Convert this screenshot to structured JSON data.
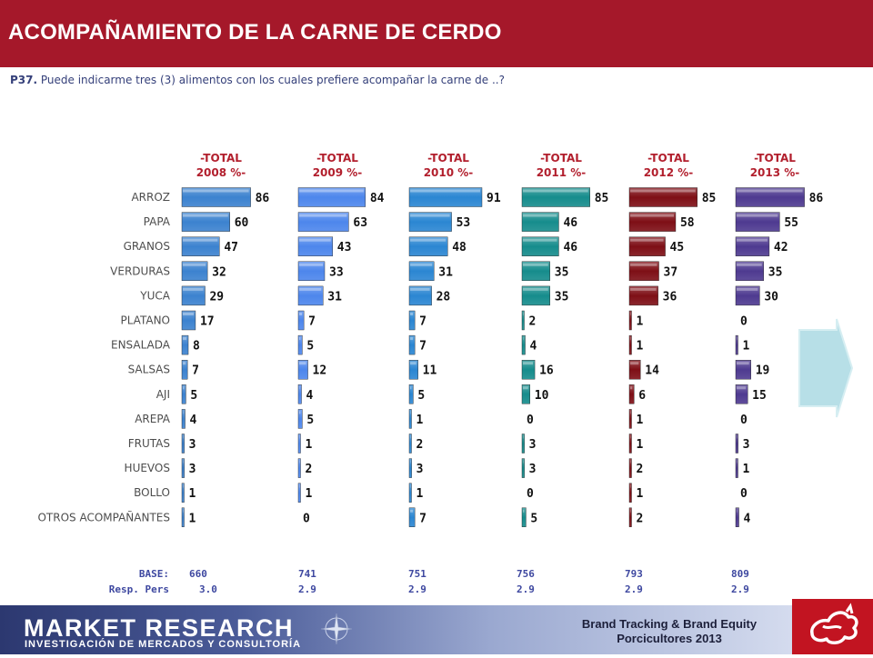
{
  "header": {
    "title": "ACOMPAÑAMIENTO DE LA CARNE DE  CERDO",
    "question_id": "P37.",
    "question_text": " Puede indicarme tres (3) alimentos con los cuales prefiere acompañar la carne de ..?"
  },
  "chart_data": {
    "type": "bar",
    "orientation": "horizontal",
    "categories": [
      "ARROZ",
      "PAPA",
      "GRANOS",
      "VERDURAS",
      "YUCA",
      "PLATANO",
      "ENSALADA",
      "SALSAS",
      "AJI",
      "AREPA",
      "FRUTAS",
      "HUEVOS",
      "BOLLO",
      "OTROS ACOMPAÑANTES"
    ],
    "series": [
      {
        "name_line1": "-TOTAL",
        "name_line2": "2008 %-",
        "color": "#3c82cf",
        "base": "660",
        "resp": "3.0",
        "values": [
          86,
          60,
          47,
          32,
          29,
          17,
          8,
          7,
          5,
          4,
          3,
          3,
          1,
          1
        ]
      },
      {
        "name_line1": "-TOTAL",
        "name_line2": "2009 %-",
        "color": "#4d86ec",
        "base": "741",
        "resp": "2.9",
        "values": [
          84,
          63,
          43,
          33,
          31,
          7,
          5,
          12,
          4,
          5,
          1,
          2,
          1,
          0
        ]
      },
      {
        "name_line1": "-TOTAL",
        "name_line2": "2010 %-",
        "color": "#2b86d2",
        "base": "751",
        "resp": "2.9",
        "values": [
          91,
          53,
          48,
          31,
          28,
          7,
          7,
          11,
          5,
          1,
          2,
          3,
          1,
          7
        ]
      },
      {
        "name_line1": "-TOTAL",
        "name_line2": "2011 %-",
        "color": "#168c8c",
        "base": "756",
        "resp": "2.9",
        "values": [
          85,
          46,
          46,
          35,
          35,
          2,
          4,
          16,
          10,
          0,
          3,
          3,
          0,
          5
        ]
      },
      {
        "name_line1": "-TOTAL",
        "name_line2": "2012 %-",
        "color": "#7e0f16",
        "base": "793",
        "resp": "2.9",
        "values": [
          85,
          58,
          45,
          37,
          36,
          1,
          1,
          14,
          6,
          1,
          1,
          2,
          1,
          2
        ]
      },
      {
        "name_line1": "-TOTAL",
        "name_line2": "2013 %-",
        "color": "#4e3a90",
        "base": "809",
        "resp": "2.9",
        "values": [
          86,
          55,
          42,
          35,
          30,
          0,
          1,
          19,
          15,
          0,
          3,
          1,
          0,
          4
        ]
      }
    ],
    "base_label": "BASE:",
    "resp_label": "Resp. Pers",
    "xlim": [
      0,
      100
    ]
  },
  "footer": {
    "company": "MARKET RESEARCH",
    "company_sub": "INVESTIGACIÓN DE MERCADOS Y CONSULTORÍA",
    "study_line1": "Brand Tracking & Brand Equity",
    "study_line2": "Porcicultores 2013"
  },
  "colors": {
    "header_bg": "#a5182a",
    "label_text": "#4d4d4d",
    "series_header": "#b21f2d",
    "base_text": "#3e48a0"
  }
}
